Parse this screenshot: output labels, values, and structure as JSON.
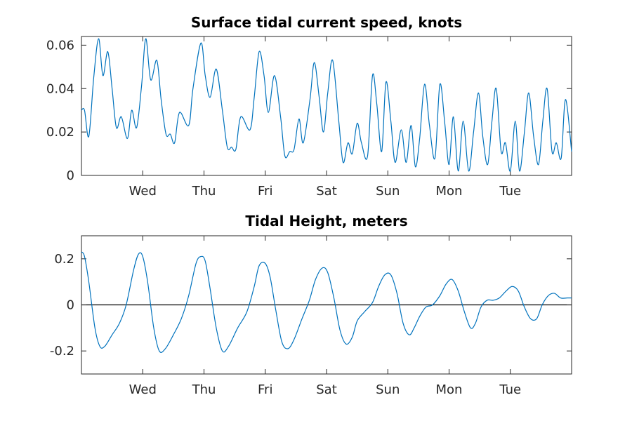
{
  "chart_data": [
    {
      "type": "line",
      "title": "Surface tidal current speed, knots",
      "xlabel": "",
      "ylabel": "",
      "xlim": [
        0,
        8
      ],
      "ylim": [
        0,
        0.064
      ],
      "x_ticks": [
        {
          "value": 1,
          "label": "Wed"
        },
        {
          "value": 2,
          "label": "Thu"
        },
        {
          "value": 3,
          "label": "Fri"
        },
        {
          "value": 4,
          "label": "Sat"
        },
        {
          "value": 5,
          "label": "Sun"
        },
        {
          "value": 6,
          "label": "Mon"
        },
        {
          "value": 7,
          "label": "Tue"
        }
      ],
      "y_ticks": [
        {
          "value": 0,
          "label": "0"
        },
        {
          "value": 0.02,
          "label": "0.02"
        },
        {
          "value": 0.04,
          "label": "0.04"
        },
        {
          "value": 0.06,
          "label": "0.06"
        }
      ],
      "grid": false,
      "color": "#0072bd",
      "series": [
        {
          "x": [
            0,
            0.05,
            0.12,
            0.2,
            0.28,
            0.35,
            0.43,
            0.5,
            0.57,
            0.65,
            0.75,
            0.82,
            0.9,
            0.98,
            1.05,
            1.13,
            1.23,
            1.3,
            1.38,
            1.45,
            1.52,
            1.6,
            1.75,
            1.82,
            1.95,
            2.02,
            2.1,
            2.2,
            2.3,
            2.38,
            2.45,
            2.52,
            2.6,
            2.75,
            2.82,
            2.9,
            2.98,
            3.05,
            3.15,
            3.25,
            3.32,
            3.4,
            3.47,
            3.55,
            3.62,
            3.73,
            3.8,
            3.88,
            3.95,
            4.02,
            4.1,
            4.2,
            4.27,
            4.35,
            4.42,
            4.5,
            4.57,
            4.67,
            4.75,
            4.82,
            4.9,
            4.97,
            5.05,
            5.12,
            5.22,
            5.3,
            5.38,
            5.45,
            5.52,
            5.6,
            5.68,
            5.77,
            5.85,
            5.93,
            6.0,
            6.07,
            6.15,
            6.23,
            6.32,
            6.4,
            6.48,
            6.55,
            6.63,
            6.7,
            6.77,
            6.85,
            6.92,
            7.0,
            7.08,
            7.15,
            7.23,
            7.3,
            7.38,
            7.46,
            7.53,
            7.6,
            7.68,
            7.75,
            7.83,
            7.9,
            8.0
          ],
          "y": [
            0.03,
            0.03,
            0.018,
            0.045,
            0.063,
            0.046,
            0.057,
            0.04,
            0.022,
            0.027,
            0.017,
            0.03,
            0.022,
            0.041,
            0.063,
            0.044,
            0.053,
            0.035,
            0.019,
            0.019,
            0.015,
            0.029,
            0.023,
            0.04,
            0.061,
            0.046,
            0.036,
            0.049,
            0.03,
            0.013,
            0.013,
            0.012,
            0.027,
            0.021,
            0.036,
            0.057,
            0.046,
            0.029,
            0.046,
            0.027,
            0.009,
            0.011,
            0.012,
            0.026,
            0.015,
            0.035,
            0.052,
            0.036,
            0.02,
            0.038,
            0.053,
            0.025,
            0.006,
            0.015,
            0.01,
            0.024,
            0.015,
            0.009,
            0.046,
            0.033,
            0.011,
            0.043,
            0.025,
            0.006,
            0.021,
            0.006,
            0.023,
            0.004,
            0.017,
            0.042,
            0.023,
            0.008,
            0.042,
            0.024,
            0.005,
            0.027,
            0.002,
            0.025,
            0.002,
            0.02,
            0.038,
            0.018,
            0.005,
            0.025,
            0.04,
            0.011,
            0.015,
            0.002,
            0.025,
            0.002,
            0.02,
            0.038,
            0.018,
            0.005,
            0.025,
            0.04,
            0.011,
            0.015,
            0.008,
            0.035,
            0.011
          ]
        }
      ]
    },
    {
      "type": "line",
      "title": "Tidal Height, meters",
      "xlabel": "",
      "ylabel": "",
      "xlim": [
        0,
        8
      ],
      "ylim": [
        -0.3,
        0.3
      ],
      "zero_line": true,
      "x_ticks": [
        {
          "value": 1,
          "label": "Wed"
        },
        {
          "value": 2,
          "label": "Thu"
        },
        {
          "value": 3,
          "label": "Fri"
        },
        {
          "value": 4,
          "label": "Sat"
        },
        {
          "value": 5,
          "label": "Sun"
        },
        {
          "value": 6,
          "label": "Mon"
        },
        {
          "value": 7,
          "label": "Tue"
        }
      ],
      "y_ticks": [
        {
          "value": -0.2,
          "label": "-0.2"
        },
        {
          "value": 0,
          "label": "0"
        },
        {
          "value": 0.2,
          "label": "0.2"
        }
      ],
      "grid": false,
      "color": "#0072bd",
      "series": [
        {
          "x": [
            0,
            0.05,
            0.12,
            0.22,
            0.3,
            0.38,
            0.5,
            0.62,
            0.73,
            0.85,
            0.93,
            1.0,
            1.08,
            1.18,
            1.27,
            1.37,
            1.5,
            1.63,
            1.75,
            1.87,
            1.95,
            2.02,
            2.1,
            2.2,
            2.3,
            2.4,
            2.55,
            2.7,
            2.82,
            2.9,
            3.0,
            3.08,
            3.17,
            3.27,
            3.37,
            3.47,
            3.6,
            3.72,
            3.82,
            3.93,
            4.02,
            4.12,
            4.22,
            4.32,
            4.42,
            4.5,
            4.62,
            4.75,
            4.85,
            4.95,
            5.05,
            5.15,
            5.25,
            5.35,
            5.43,
            5.52,
            5.62,
            5.73,
            5.85,
            5.95,
            6.05,
            6.15,
            6.25,
            6.35,
            6.43,
            6.52,
            6.62,
            6.72,
            6.82,
            6.93,
            7.03,
            7.13,
            7.23,
            7.33,
            7.43,
            7.52,
            7.62,
            7.72,
            7.82,
            7.93,
            8.0
          ],
          "y": [
            0.23,
            0.21,
            0.1,
            -0.1,
            -0.18,
            -0.18,
            -0.13,
            -0.08,
            0.0,
            0.15,
            0.22,
            0.21,
            0.1,
            -0.1,
            -0.2,
            -0.19,
            -0.13,
            -0.06,
            0.04,
            0.18,
            0.21,
            0.19,
            0.07,
            -0.1,
            -0.2,
            -0.18,
            -0.1,
            -0.03,
            0.08,
            0.17,
            0.18,
            0.12,
            -0.02,
            -0.16,
            -0.19,
            -0.15,
            -0.06,
            0.02,
            0.11,
            0.16,
            0.14,
            0.03,
            -0.11,
            -0.17,
            -0.14,
            -0.07,
            -0.03,
            0.01,
            0.08,
            0.13,
            0.13,
            0.05,
            -0.08,
            -0.13,
            -0.1,
            -0.05,
            -0.01,
            0.0,
            0.04,
            0.09,
            0.11,
            0.06,
            -0.03,
            -0.1,
            -0.08,
            -0.01,
            0.02,
            0.02,
            0.03,
            0.06,
            0.08,
            0.06,
            -0.01,
            -0.06,
            -0.06,
            0.0,
            0.04,
            0.05,
            0.03,
            0.03,
            0.03
          ]
        }
      ]
    }
  ]
}
